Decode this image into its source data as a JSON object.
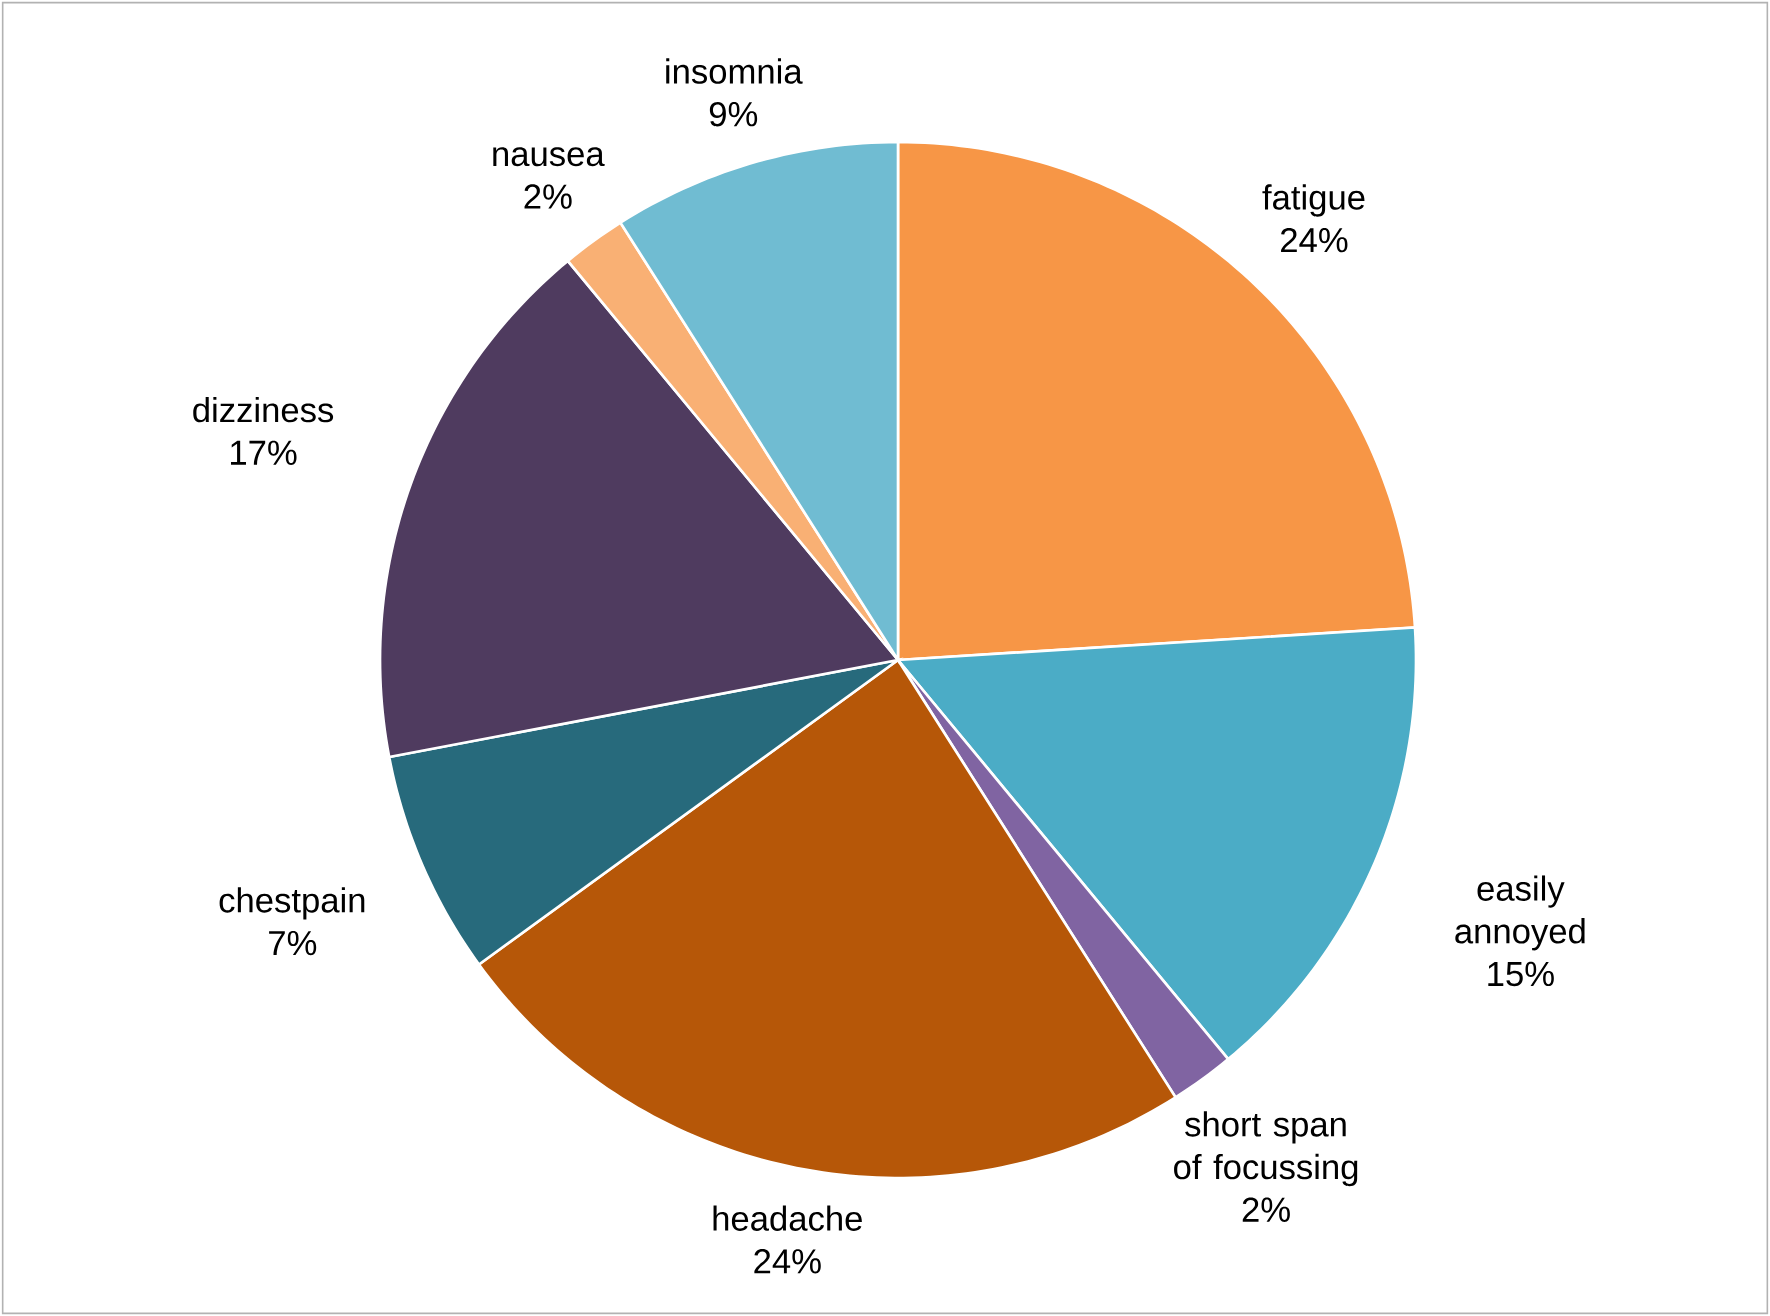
{
  "chart_data": {
    "type": "pie",
    "categories": [
      "fatigue",
      "easily annoyed",
      "short span of focussing",
      "headache",
      "chestpain",
      "dizziness",
      "nausea",
      "insomnia"
    ],
    "values": [
      24,
      15,
      2,
      24,
      7,
      17,
      2,
      9
    ],
    "value_labels": [
      "24%",
      "15%",
      "2%",
      "24%",
      "7%",
      "17%",
      "2%",
      "9%"
    ],
    "colors": [
      "#f79646",
      "#4bacc6",
      "#8064a2",
      "#b65708",
      "#276a7c",
      "#4f3b5f",
      "#f9b074",
      "#70bcd2"
    ]
  }
}
